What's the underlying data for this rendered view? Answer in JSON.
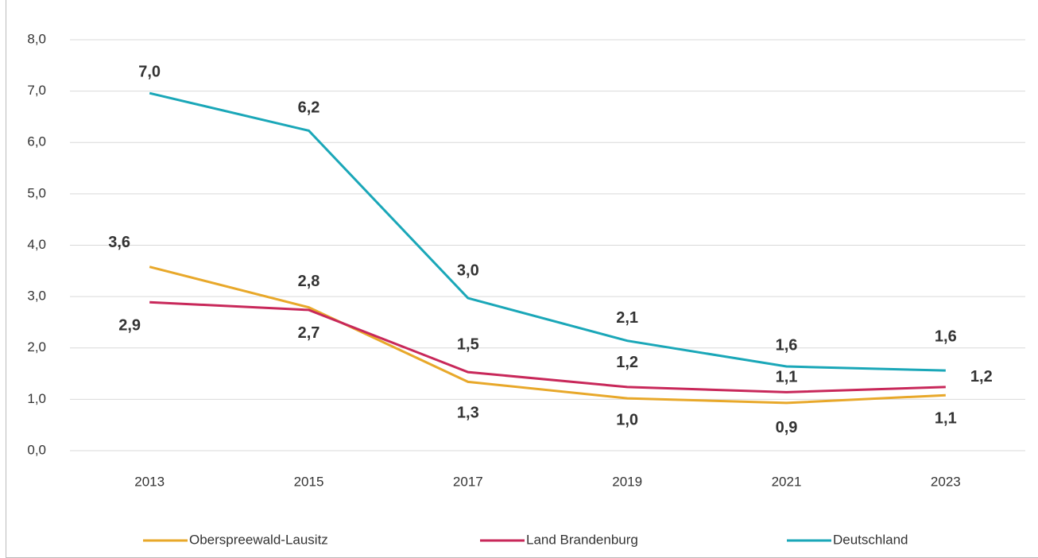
{
  "chart_data": {
    "type": "line",
    "categories": [
      "2013",
      "2015",
      "2017",
      "2019",
      "2021",
      "2023"
    ],
    "series": [
      {
        "name": "Oberspreewald-Lausitz",
        "color": "#e8a82a",
        "values": [
          3.58,
          2.79,
          1.34,
          1.02,
          0.93,
          1.08
        ],
        "value_labels": [
          "3,6",
          "2,8",
          "1,3",
          "1,0",
          "0,9",
          "1,1"
        ]
      },
      {
        "name": "Land Brandenburg",
        "color": "#c8285a",
        "values": [
          2.89,
          2.74,
          1.53,
          1.24,
          1.14,
          1.24
        ],
        "value_labels": [
          "2,9",
          "2,7",
          "1,5",
          "1,2",
          "1,1",
          "1,2"
        ]
      },
      {
        "name": "Deutschland",
        "color": "#1aa7b8",
        "values": [
          6.96,
          6.23,
          2.97,
          2.14,
          1.64,
          1.56
        ],
        "value_labels": [
          "7,0",
          "6,2",
          "3,0",
          "2,1",
          "1,6",
          "1,6"
        ]
      }
    ],
    "ylim": [
      0,
      8
    ],
    "yticks": [
      {
        "value": 0,
        "label": "0,0"
      },
      {
        "value": 1,
        "label": "1,0"
      },
      {
        "value": 2,
        "label": "2,0"
      },
      {
        "value": 3,
        "label": "3,0"
      },
      {
        "value": 4,
        "label": "4,0"
      },
      {
        "value": 5,
        "label": "5,0"
      },
      {
        "value": 6,
        "label": "6,0"
      },
      {
        "value": 7,
        "label": "7,0"
      },
      {
        "value": 8,
        "label": "8,0"
      }
    ],
    "grid": true,
    "legend": "bottom"
  }
}
